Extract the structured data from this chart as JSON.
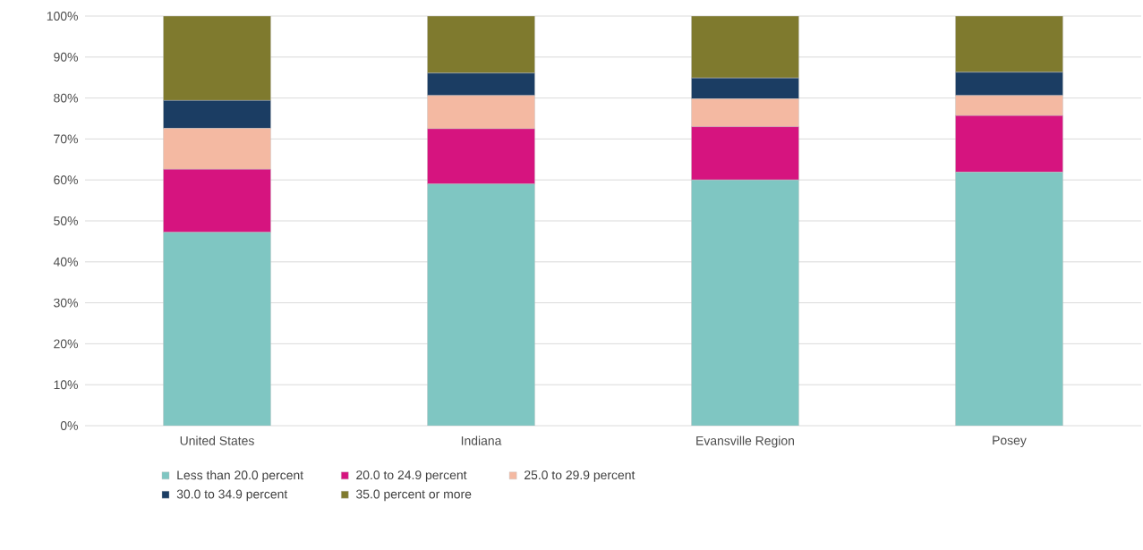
{
  "chart_data": {
    "type": "bar",
    "stacked": true,
    "categories": [
      "United States",
      "Indiana",
      "Evansville Region",
      "Posey"
    ],
    "series": [
      {
        "name": "Less than 20.0 percent",
        "color": "#7fc6c2",
        "values": [
          47.2,
          59.0,
          60.0,
          61.9
        ]
      },
      {
        "name": "20.0 to 24.9 percent",
        "color": "#d6147f",
        "values": [
          15.4,
          13.5,
          13.0,
          13.8
        ]
      },
      {
        "name": "25.0 to 29.9 percent",
        "color": "#f4b9a2",
        "values": [
          10.0,
          8.1,
          6.8,
          4.9
        ]
      },
      {
        "name": "30.0 to 34.9 percent",
        "color": "#1b3d63",
        "values": [
          6.8,
          5.5,
          5.1,
          5.7
        ]
      },
      {
        "name": "35.0 percent or more",
        "color": "#7f7a2e",
        "values": [
          20.6,
          13.9,
          15.1,
          13.7
        ]
      }
    ],
    "ylim": [
      0,
      100
    ],
    "yticks": [
      {
        "value": 0,
        "label": "0%"
      },
      {
        "value": 10,
        "label": "10%"
      },
      {
        "value": 20,
        "label": "20%"
      },
      {
        "value": 30,
        "label": "30%"
      },
      {
        "value": 40,
        "label": "40%"
      },
      {
        "value": 50,
        "label": "50%"
      },
      {
        "value": 60,
        "label": "60%"
      },
      {
        "value": 70,
        "label": "70%"
      },
      {
        "value": 80,
        "label": "80%"
      },
      {
        "value": 90,
        "label": "90%"
      },
      {
        "value": 100,
        "label": "100%"
      }
    ],
    "grid": "y",
    "legend": "bottom"
  }
}
